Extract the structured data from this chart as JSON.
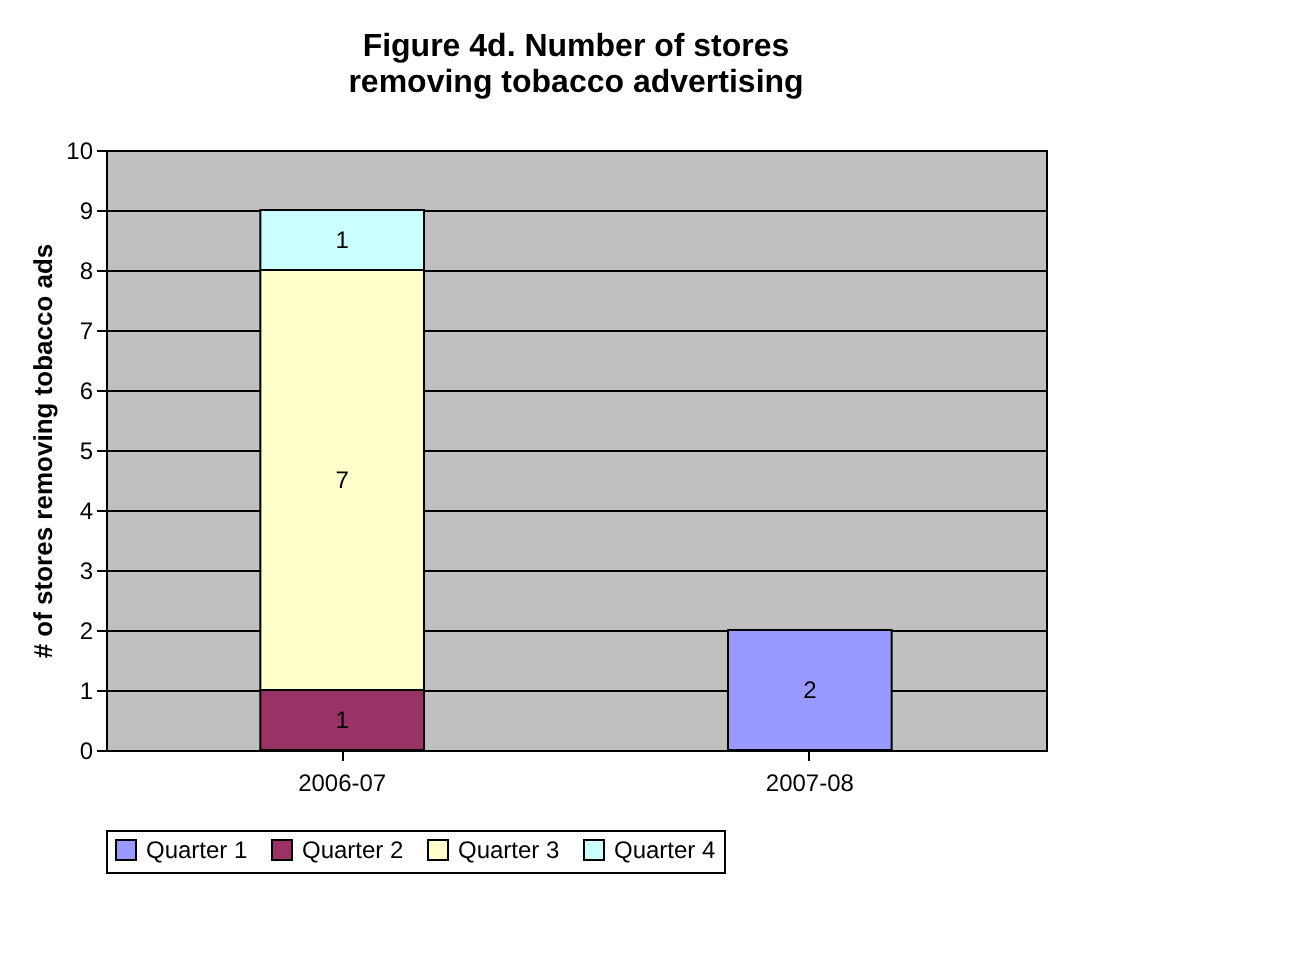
{
  "chart_data": {
    "type": "bar",
    "title": "Figure 4d. Number of stores removing tobacco advertising",
    "ylabel": "# of stores removing tobacco ads",
    "categories": [
      "2006-07",
      "2007-08"
    ],
    "stacked": true,
    "series": [
      {
        "name": "Quarter 1",
        "color": "#9999ff",
        "values": [
          null,
          2
        ]
      },
      {
        "name": "Quarter 2",
        "color": "#993366",
        "values": [
          1,
          null
        ]
      },
      {
        "name": "Quarter 3",
        "color": "#ffffcc",
        "values": [
          7,
          null
        ]
      },
      {
        "name": "Quarter 4",
        "color": "#ccffff",
        "values": [
          1,
          null
        ]
      }
    ],
    "ylim": [
      0,
      10
    ],
    "yticks": [
      0,
      1,
      2,
      3,
      4,
      5,
      6,
      7,
      8,
      9,
      10
    ],
    "grid": "y",
    "legend": "bottom",
    "data_labels": true
  }
}
